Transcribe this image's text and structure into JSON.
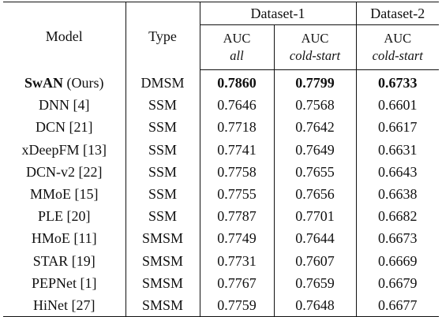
{
  "header": {
    "model": "Model",
    "type": "Type",
    "dataset1": "Dataset-1",
    "dataset2": "Dataset-2",
    "metric": "AUC",
    "sub_all": "all",
    "sub_cold1": "cold-start",
    "sub_cold2": "cold-start"
  },
  "rows": [
    {
      "name_bold": "SwAN",
      "name_rest": " (Ours)",
      "type": "DMSM",
      "all": "0.7860",
      "cold1": "0.7799",
      "cold2": "0.6733",
      "highlight": true
    },
    {
      "name": "DNN [4]",
      "type": "SSM",
      "all": "0.7646",
      "cold1": "0.7568",
      "cold2": "0.6601"
    },
    {
      "name": "DCN [21]",
      "type": "SSM",
      "all": "0.7718",
      "cold1": "0.7642",
      "cold2": "0.6617"
    },
    {
      "name": "xDeepFM [13]",
      "type": "SSM",
      "all": "0.7741",
      "cold1": "0.7649",
      "cold2": "0.6631"
    },
    {
      "name": "DCN-v2 [22]",
      "type": "SSM",
      "all": "0.7758",
      "cold1": "0.7655",
      "cold2": "0.6643"
    },
    {
      "name": "MMoE [15]",
      "type": "SSM",
      "all": "0.7755",
      "cold1": "0.7656",
      "cold2": "0.6638"
    },
    {
      "name": "PLE [20]",
      "type": "SSM",
      "all": "0.7787",
      "cold1": "0.7701",
      "cold2": "0.6682"
    },
    {
      "name": "HMoE [11]",
      "type": "SMSM",
      "all": "0.7749",
      "cold1": "0.7644",
      "cold2": "0.6673"
    },
    {
      "name": "STAR [19]",
      "type": "SMSM",
      "all": "0.7731",
      "cold1": "0.7607",
      "cold2": "0.6669"
    },
    {
      "name": "PEPNet [1]",
      "type": "SMSM",
      "all": "0.7767",
      "cold1": "0.7659",
      "cold2": "0.6679"
    },
    {
      "name": "HiNet [27]",
      "type": "SMSM",
      "all": "0.7759",
      "cold1": "0.7648",
      "cold2": "0.6677"
    }
  ]
}
